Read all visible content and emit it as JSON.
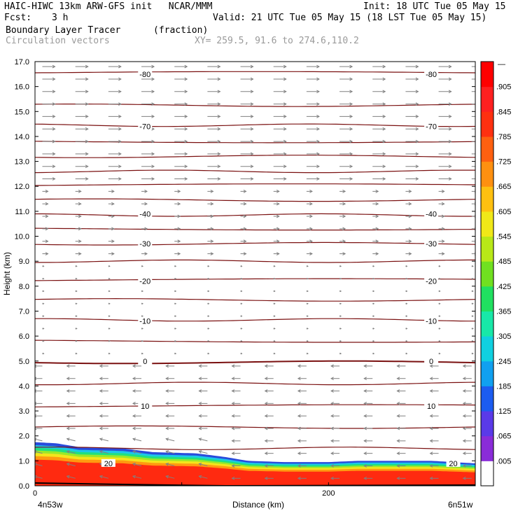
{
  "header": {
    "model": "HAIC-HIWC 13km ARW-GFS init   NCAR/MMM",
    "init": "Init: 18 UTC Tue 05 May 15",
    "fcst_label": "Fcst:",
    "fcst_value": "3 h",
    "valid": "Valid: 21 UTC Tue 05 May 15 (18 LST Tue 05 May 15)",
    "field": "Boundary Layer Tracer",
    "units": "(fraction)",
    "overlay": "Circulation vectors",
    "xy": "XY= 259.5, 91.6 to 274.6,110.2"
  },
  "axes": {
    "ylabel": "Height (km)",
    "xlabel": "Distance (km)",
    "left_end": "4n53w",
    "right_end": "6n51w"
  },
  "colorbar": {
    "labels": [
      ".905",
      ".845",
      ".785",
      ".725",
      ".665",
      ".605",
      ".545",
      ".485",
      ".425",
      ".365",
      ".305",
      ".245",
      ".185",
      ".125",
      ".065",
      ".005"
    ],
    "top_label": "—"
  },
  "chart_data": {
    "type": "cross-section",
    "xlim": [
      0,
      300
    ],
    "ylim": [
      0,
      17
    ],
    "x_ticks": [
      0,
      200
    ],
    "y_ticks": [
      "0.0",
      "1.0",
      "2.0",
      "3.0",
      "4.0",
      "5.0",
      "6.0",
      "7.0",
      "8.0",
      "9.0",
      "10.0",
      "11.0",
      "12.0",
      "13.0",
      "14.0",
      "15.0",
      "16.0",
      "17.0"
    ],
    "temperature_contours_labels": [
      {
        "value": "-80",
        "height": 16.5
      },
      {
        "value": "-70",
        "height": 14.4
      },
      {
        "value": "-40",
        "height": 10.9
      },
      {
        "value": "-30",
        "height": 9.7
      },
      {
        "value": "-20",
        "height": 8.2
      },
      {
        "value": "-10",
        "height": 6.6
      },
      {
        "value": "0",
        "height": 5.0
      },
      {
        "value": "10",
        "height": 3.2
      },
      {
        "value": "20",
        "height": 0.9
      }
    ],
    "contour_heights": [
      16.55,
      15.25,
      14.45,
      13.8,
      13.2,
      12.6,
      12.05,
      11.45,
      10.85,
      10.3,
      9.7,
      9.0,
      8.25,
      7.45,
      6.65,
      5.8,
      4.95,
      4.1,
      3.2,
      2.35,
      1.5
    ],
    "tracer_top": [
      [
        0,
        1.75
      ],
      [
        15,
        1.7
      ],
      [
        30,
        1.55
      ],
      [
        60,
        1.5
      ],
      [
        80,
        1.35
      ],
      [
        110,
        1.3
      ],
      [
        130,
        1.15
      ],
      [
        145,
        1.0
      ],
      [
        170,
        0.95
      ],
      [
        200,
        0.95
      ],
      [
        220,
        1.0
      ],
      [
        250,
        1.0
      ],
      [
        270,
        1.0
      ],
      [
        300,
        0.9
      ]
    ],
    "colorbar_levels": [
      0.005,
      0.065,
      0.125,
      0.185,
      0.245,
      0.305,
      0.365,
      0.425,
      0.485,
      0.545,
      0.605,
      0.665,
      0.725,
      0.785,
      0.845,
      0.905
    ]
  }
}
